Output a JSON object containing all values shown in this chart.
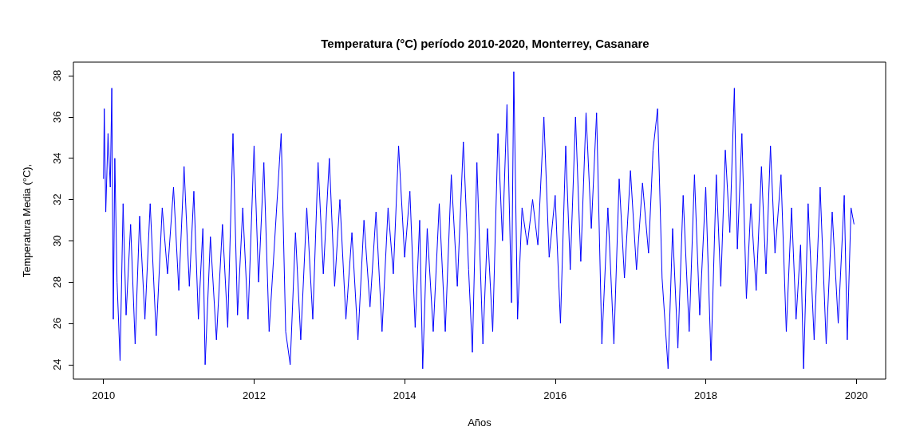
{
  "chart_data": {
    "type": "line",
    "title": "Temperatura (°C) período 2010-2020, Monterrey, Casanare",
    "xlabel": "Años",
    "ylabel": "Temperatura Media (°C),",
    "xlim": [
      2009.6,
      2020.39
    ],
    "xticks": [
      2010,
      2012,
      2014,
      2016,
      2018,
      2020
    ],
    "ylim": [
      23.3,
      38.66
    ],
    "yticks": [
      24,
      26,
      28,
      30,
      32,
      34,
      36,
      38
    ],
    "grid": false,
    "marker": "none",
    "line_style": "solid",
    "series": [
      {
        "color": "#0000ff",
        "x": [
          2010.0,
          2010.01,
          2010.03,
          2010.06,
          2010.09,
          2010.11,
          2010.13,
          2010.15,
          2010.18,
          2010.22,
          2010.26,
          2010.3,
          2010.36,
          2010.42,
          2010.48,
          2010.55,
          2010.62,
          2010.7,
          2010.78,
          2010.85,
          2010.93,
          2011.0,
          2011.07,
          2011.14,
          2011.2,
          2011.26,
          2011.32,
          2011.35,
          2011.42,
          2011.5,
          2011.58,
          2011.65,
          2011.72,
          2011.78,
          2011.85,
          2011.92,
          2012.0,
          2012.06,
          2012.13,
          2012.2,
          2012.28,
          2012.36,
          2012.42,
          2012.48,
          2012.55,
          2012.62,
          2012.7,
          2012.78,
          2012.85,
          2012.92,
          2013.0,
          2013.07,
          2013.14,
          2013.22,
          2013.3,
          2013.38,
          2013.46,
          2013.54,
          2013.62,
          2013.7,
          2013.78,
          2013.85,
          2013.92,
          2014.0,
          2014.07,
          2014.14,
          2014.2,
          2014.24,
          2014.3,
          2014.38,
          2014.46,
          2014.54,
          2014.62,
          2014.7,
          2014.78,
          2014.85,
          2014.9,
          2014.96,
          2015.04,
          2015.1,
          2015.17,
          2015.24,
          2015.3,
          2015.36,
          2015.42,
          2015.45,
          2015.5,
          2015.56,
          2015.63,
          2015.7,
          2015.77,
          2015.85,
          2015.92,
          2016.0,
          2016.07,
          2016.14,
          2016.2,
          2016.27,
          2016.34,
          2016.41,
          2016.48,
          2016.55,
          2016.62,
          2016.7,
          2016.78,
          2016.85,
          2016.92,
          2017.0,
          2017.08,
          2017.16,
          2017.24,
          2017.3,
          2017.36,
          2017.42,
          2017.5,
          2017.56,
          2017.63,
          2017.7,
          2017.78,
          2017.85,
          2017.92,
          2018.0,
          2018.07,
          2018.14,
          2018.2,
          2018.26,
          2018.32,
          2018.38,
          2018.42,
          2018.48,
          2018.54,
          2018.6,
          2018.67,
          2018.74,
          2018.8,
          2018.86,
          2018.92,
          2019.0,
          2019.07,
          2019.14,
          2019.2,
          2019.26,
          2019.3,
          2019.36,
          2019.44,
          2019.52,
          2019.6,
          2019.68,
          2019.76,
          2019.84,
          2019.88,
          2019.93,
          2019.97
        ],
        "values": [
          33,
          36.4,
          31.4,
          35.2,
          32.6,
          37.4,
          26.2,
          34,
          28,
          24.2,
          31.8,
          26.4,
          30.8,
          25,
          31.2,
          26.2,
          31.8,
          25.4,
          31.6,
          28.4,
          32.6,
          27.6,
          33.6,
          27.8,
          32.4,
          26.2,
          30.6,
          24,
          30.2,
          25.2,
          30.8,
          25.8,
          35.2,
          26.4,
          31.6,
          26.2,
          34.6,
          28,
          33.8,
          25.6,
          30.4,
          35.2,
          25.6,
          24,
          30.4,
          25.2,
          31.6,
          26.2,
          33.8,
          28.4,
          34,
          27.8,
          32,
          26.2,
          30.4,
          25.2,
          31,
          26.8,
          31.4,
          25.6,
          31.6,
          28.4,
          34.6,
          29.2,
          32.4,
          25.8,
          31,
          23.8,
          30.6,
          25.6,
          31.8,
          25.6,
          33.2,
          27.8,
          34.8,
          28.6,
          24.6,
          33.8,
          25,
          30.6,
          25.6,
          35.2,
          30,
          36.6,
          27,
          38.2,
          26.2,
          31.6,
          29.8,
          32,
          29.8,
          36,
          29.2,
          32.2,
          26,
          34.6,
          28.6,
          36,
          29,
          36.2,
          30.6,
          36.2,
          25,
          31.6,
          25,
          33,
          28.2,
          33.4,
          28.6,
          32.8,
          29.4,
          34.4,
          36.4,
          28.2,
          23.8,
          30.6,
          24.8,
          32.2,
          25.6,
          33.2,
          26.4,
          32.6,
          24.2,
          33.2,
          27.8,
          34.4,
          30.4,
          37.4,
          29.6,
          35.2,
          27.2,
          31.8,
          27.6,
          33.6,
          28.4,
          34.6,
          29.4,
          33.2,
          25.6,
          31.6,
          26.2,
          29.8,
          23.8,
          31.8,
          25.2,
          32.6,
          25,
          31.4,
          26,
          32.2,
          25.2,
          31.6,
          30.8
        ]
      }
    ]
  }
}
